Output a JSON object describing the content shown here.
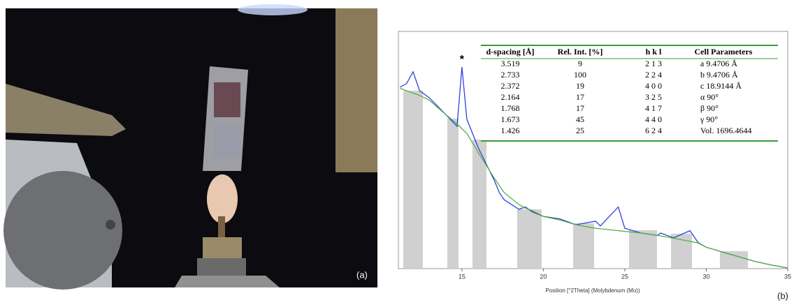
{
  "panel_labels": [
    "(a)",
    "(b)"
  ],
  "chart_data": {
    "type": "line",
    "x_label": "Position [°2Theta] (Molybdenum (Mo))",
    "annotation": "*",
    "annotation_x": 15.0,
    "x": [
      11.2,
      11.6,
      12.0,
      12.4,
      13,
      14,
      14.7,
      15.0,
      15.3,
      16,
      17,
      17.3,
      17.6,
      18.5,
      18.9,
      19.3,
      20,
      21,
      22,
      23.2,
      23.5,
      24.6,
      25,
      26,
      27,
      27.2,
      28,
      29,
      29.5,
      30,
      31,
      32,
      33,
      34,
      35
    ],
    "series": [
      {
        "color": "#3040e0",
        "values": [
          76.5,
          78,
          83,
          75,
          72,
          65,
          60,
          85,
          63,
          51,
          37,
          32,
          29,
          25,
          26,
          24,
          22,
          21,
          18.5,
          20,
          18,
          26,
          17,
          15,
          14,
          15,
          13,
          16,
          11,
          9,
          7,
          5,
          3,
          1.5,
          0.3
        ]
      },
      {
        "color": "#55b040",
        "values": [
          76,
          75,
          74,
          73,
          71,
          65,
          61,
          59,
          57,
          49,
          38,
          35,
          32,
          27,
          25.5,
          24.5,
          22,
          20.5,
          18.5,
          17,
          16.8,
          16,
          15.7,
          15,
          14,
          13.8,
          12.8,
          11.5,
          10.8,
          9,
          7,
          5,
          3,
          1.5,
          0.3
        ]
      }
    ],
    "xlim": [
      11.1,
      35
    ],
    "xticks": [
      15,
      20,
      25,
      30,
      35
    ],
    "ylim": [
      0,
      100
    ]
  },
  "table": {
    "header": [
      "d-spacing [Å]",
      "Rel. Int. [%]",
      "h k l",
      "Cell Parameters"
    ],
    "rows": [
      [
        "3.519",
        "9",
        "2 1 3",
        "a   9.4706  Å"
      ],
      [
        "2.733",
        "100",
        "2 2 4",
        "b   9.4706  Å"
      ],
      [
        "2.372",
        "19",
        "4 0 0",
        "c   18.9144 Å"
      ],
      [
        "2.164",
        "17",
        "3 2 5",
        "α   90°"
      ],
      [
        "1.768",
        "17",
        "4 1 7",
        "β   90°"
      ],
      [
        "1.673",
        "45",
        "4 4 0",
        "γ   90°"
      ],
      [
        "1.426",
        "25",
        "6 2 4",
        "Vol.  1696.4644"
      ]
    ]
  }
}
